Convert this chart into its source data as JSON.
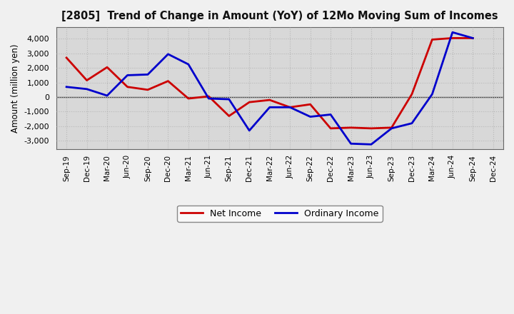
{
  "title": "[2805]  Trend of Change in Amount (YoY) of 12Mo Moving Sum of Incomes",
  "ylabel": "Amount (million yen)",
  "x_labels": [
    "Sep-19",
    "Dec-19",
    "Mar-20",
    "Jun-20",
    "Sep-20",
    "Dec-20",
    "Mar-21",
    "Jun-21",
    "Sep-21",
    "Dec-21",
    "Mar-22",
    "Jun-22",
    "Sep-22",
    "Dec-22",
    "Mar-23",
    "Jun-23",
    "Sep-23",
    "Dec-23",
    "Mar-24",
    "Jun-24",
    "Sep-24",
    "Dec-24"
  ],
  "ordinary_income": [
    700,
    550,
    100,
    1500,
    1550,
    2950,
    2250,
    -100,
    -150,
    -2300,
    -700,
    -700,
    -1350,
    -1200,
    -3200,
    -3250,
    -2150,
    -1800,
    200,
    4450,
    4050,
    null
  ],
  "net_income": [
    2700,
    1150,
    2050,
    700,
    500,
    1100,
    -100,
    50,
    -1300,
    -350,
    -200,
    -700,
    -500,
    -2150,
    -2100,
    -2150,
    -2100,
    200,
    3950,
    4050,
    4050,
    null
  ],
  "ordinary_color": "#0000cc",
  "net_color": "#cc0000",
  "ylim": [
    -3600,
    4800
  ],
  "yticks": [
    -3000,
    -2000,
    -1000,
    0,
    1000,
    2000,
    3000,
    4000
  ],
  "legend_ordinary": "Ordinary Income",
  "legend_net": "Net Income",
  "plot_bg_color": "#d8d8d8",
  "fig_bg_color": "#f0f0f0",
  "grid_color": "#b8b8b8"
}
